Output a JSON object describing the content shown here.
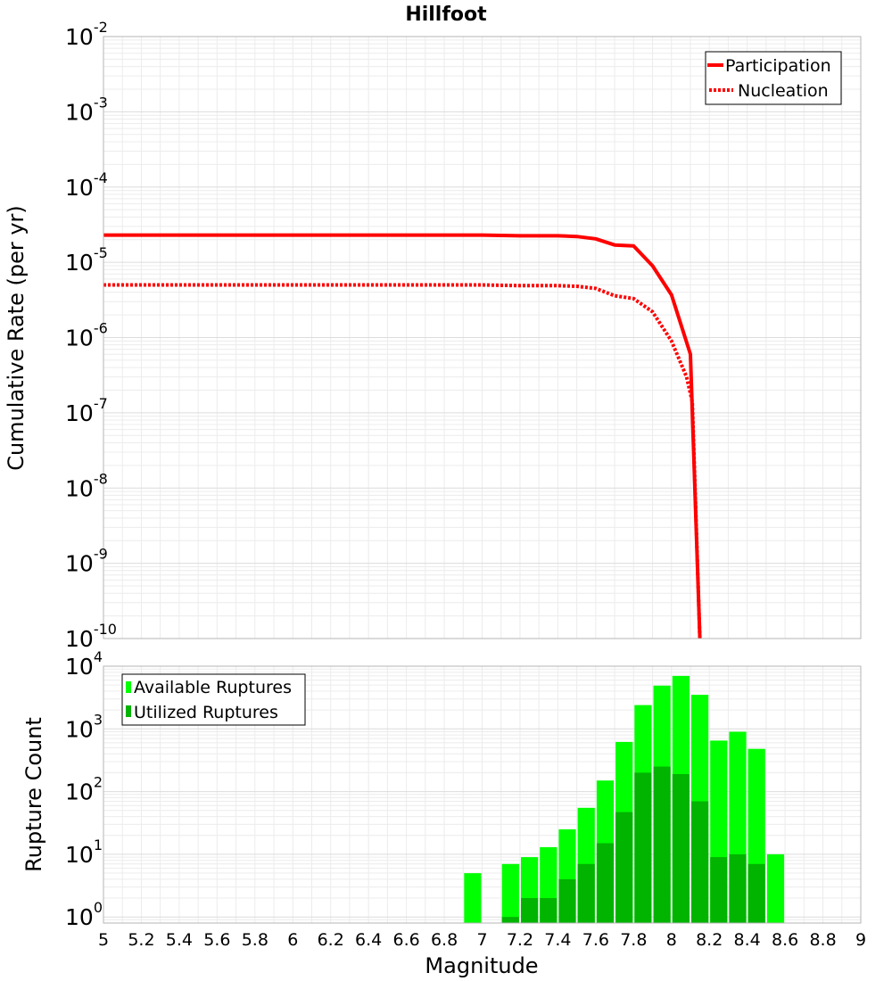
{
  "chart_data": [
    {
      "type": "line",
      "title": "Hillfoot",
      "xlabel": "Magnitude",
      "ylabel": "Cumulative Rate (per yr)",
      "yscale": "log",
      "xlim": [
        5,
        9
      ],
      "ylim": [
        1e-10,
        0.01
      ],
      "y_ticks": [
        {
          "mant": "10",
          "exp": "-10"
        },
        {
          "mant": "10",
          "exp": "-9"
        },
        {
          "mant": "10",
          "exp": "-8"
        },
        {
          "mant": "10",
          "exp": "-7"
        },
        {
          "mant": "10",
          "exp": "-6"
        },
        {
          "mant": "10",
          "exp": "-5"
        },
        {
          "mant": "10",
          "exp": "-4"
        },
        {
          "mant": "10",
          "exp": "-3"
        },
        {
          "mant": "10",
          "exp": "-2"
        }
      ],
      "grid": true,
      "legend_position": "top-right",
      "series": [
        {
          "name": "Participation",
          "color": "#ff0000",
          "style": "solid",
          "x": [
            5.0,
            5.5,
            6.0,
            6.5,
            7.0,
            7.2,
            7.4,
            7.5,
            7.6,
            7.7,
            7.8,
            7.9,
            8.0,
            8.1,
            8.15
          ],
          "y": [
            2.3e-05,
            2.3e-05,
            2.3e-05,
            2.3e-05,
            2.3e-05,
            2.25e-05,
            2.25e-05,
            2.2e-05,
            2.05e-05,
            1.7e-05,
            1.65e-05,
            9e-06,
            3.7e-06,
            6e-07,
            1e-10
          ]
        },
        {
          "name": "Nucleation",
          "color": "#ff0000",
          "style": "dotted",
          "x": [
            5.0,
            5.5,
            6.0,
            6.5,
            7.0,
            7.2,
            7.4,
            7.5,
            7.6,
            7.7,
            7.8,
            7.9,
            8.0,
            8.08,
            8.11,
            8.15
          ],
          "y": [
            5e-06,
            5e-06,
            5e-06,
            5e-06,
            5e-06,
            4.9e-06,
            4.9e-06,
            4.8e-06,
            4.5e-06,
            3.6e-06,
            3.3e-06,
            2.2e-06,
            9e-07,
            3e-07,
            1.4e-07,
            1e-10
          ]
        }
      ]
    },
    {
      "type": "bar",
      "xlabel": "Magnitude",
      "ylabel": "Rupture Count",
      "yscale": "log",
      "xlim": [
        5,
        9
      ],
      "ylim": [
        0.8,
        10000
      ],
      "x_ticks": [
        "5",
        "5.2",
        "5.4",
        "5.6",
        "5.8",
        "6",
        "6.2",
        "6.4",
        "6.6",
        "6.8",
        "7",
        "7.2",
        "7.4",
        "7.6",
        "7.8",
        "8",
        "8.2",
        "8.4",
        "8.6",
        "8.8",
        "9"
      ],
      "y_ticks": [
        {
          "mant": "10",
          "exp": "0"
        },
        {
          "mant": "10",
          "exp": "1"
        },
        {
          "mant": "10",
          "exp": "2"
        },
        {
          "mant": "10",
          "exp": "3"
        },
        {
          "mant": "10",
          "exp": "4"
        }
      ],
      "grid": true,
      "legend_position": "top-left",
      "bin_width": 0.1,
      "bin_centers": [
        6.95,
        7.15,
        7.25,
        7.35,
        7.45,
        7.55,
        7.65,
        7.75,
        7.85,
        7.95,
        8.05,
        8.15,
        8.25,
        8.35,
        8.45,
        8.55
      ],
      "series": [
        {
          "name": "Available Ruptures",
          "color": "#00ff00",
          "values": [
            5,
            7,
            9,
            13,
            25,
            55,
            150,
            620,
            2400,
            4900,
            7000,
            3500,
            650,
            900,
            480,
            10
          ]
        },
        {
          "name": "Utilized Ruptures",
          "color": "#00b400",
          "values": [
            0,
            1,
            2,
            2,
            4,
            7,
            15,
            47,
            200,
            250,
            190,
            70,
            9,
            10,
            7,
            0
          ]
        }
      ]
    }
  ]
}
